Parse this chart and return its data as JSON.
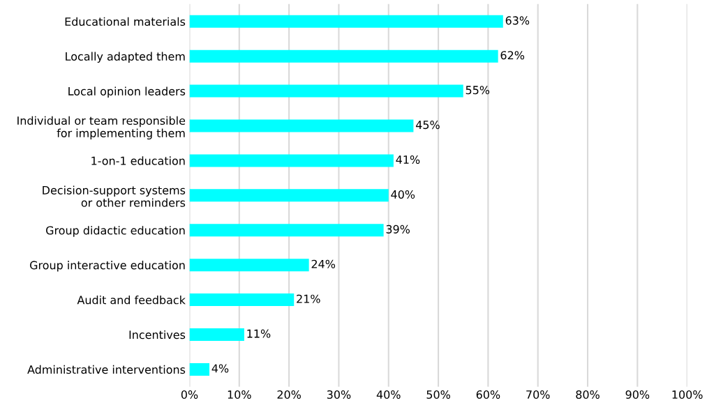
{
  "chart_data": {
    "type": "bar",
    "orientation": "horizontal",
    "categories": [
      "Educational materials",
      "Locally adapted them",
      "Local opinion leaders",
      "Individual or team responsible\nfor implementing them",
      "1-on-1 education",
      "Decision-support systems\nor other reminders",
      "Group didactic education",
      "Group interactive education",
      "Audit and feedback",
      "Incentives",
      "Administrative interventions"
    ],
    "values": [
      63,
      62,
      55,
      45,
      41,
      40,
      39,
      24,
      21,
      11,
      4
    ],
    "value_labels": [
      "63%",
      "62%",
      "55%",
      "45%",
      "41%",
      "40%",
      "39%",
      "24%",
      "21%",
      "11%",
      "4%"
    ],
    "color": "#00ffff",
    "xlim": [
      0,
      100
    ],
    "xticks": [
      {
        "value": 0,
        "label": "0%"
      },
      {
        "value": 10,
        "label": "10%"
      },
      {
        "value": 20,
        "label": "20%"
      },
      {
        "value": 30,
        "label": "30%"
      },
      {
        "value": 40,
        "label": "40%"
      },
      {
        "value": 50,
        "label": "50%"
      },
      {
        "value": 60,
        "label": "60%"
      },
      {
        "value": 70,
        "label": "70%"
      },
      {
        "value": 80,
        "label": "80%"
      },
      {
        "value": 90,
        "label": "90%"
      },
      {
        "value": 100,
        "label": "100%"
      }
    ],
    "grid": "x",
    "legend": false
  }
}
